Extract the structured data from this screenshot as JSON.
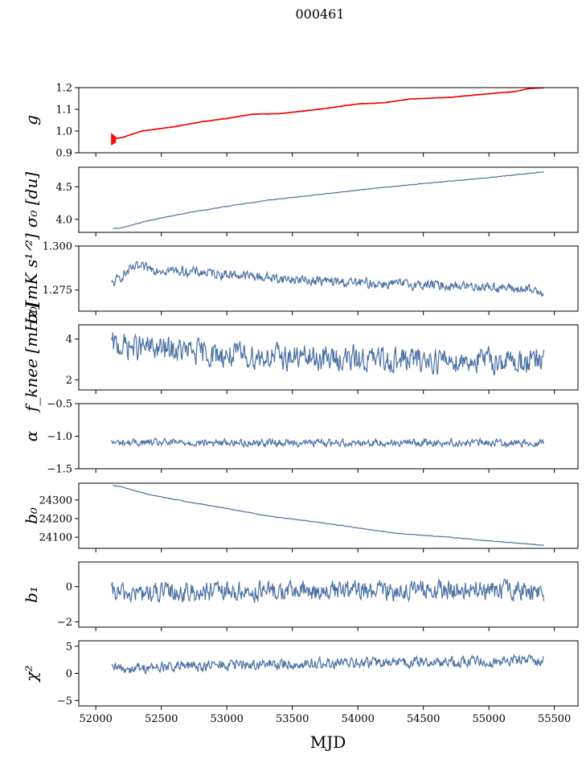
{
  "title": "000461",
  "x_label": "MJD",
  "colors": {
    "series": "#4c72a4",
    "fit": "#ff0000",
    "axes": "#000000"
  },
  "chart_data": [
    {
      "type": "line",
      "ylabel_html": "g",
      "ylim": [
        0.9,
        1.2
      ],
      "yticks": [
        0.9,
        1.0,
        1.1,
        1.2
      ],
      "ytick_labels": [
        "0.9",
        "1.0",
        "1.1",
        "1.2"
      ],
      "xlim": [
        51870,
        55680
      ],
      "x_range": [
        52120,
        55420
      ],
      "trend": [
        [
          52120,
          0.963
        ],
        [
          52200,
          0.97
        ],
        [
          52350,
          1.0
        ],
        [
          52600,
          1.02
        ],
        [
          52800,
          1.042
        ],
        [
          53000,
          1.058
        ],
        [
          53200,
          1.078
        ],
        [
          53400,
          1.08
        ],
        [
          53700,
          1.1
        ],
        [
          54000,
          1.125
        ],
        [
          54200,
          1.13
        ],
        [
          54400,
          1.148
        ],
        [
          54700,
          1.155
        ],
        [
          55000,
          1.172
        ],
        [
          55200,
          1.182
        ],
        [
          55300,
          1.195
        ],
        [
          55420,
          1.2
        ]
      ],
      "noise": 0.002,
      "has_fit": true
    },
    {
      "type": "line",
      "ylabel": "σ₀ [du]",
      "ylim": [
        3.8,
        4.8
      ],
      "yticks": [
        4.0,
        4.5
      ],
      "ytick_labels": [
        "4.0",
        "4.5"
      ],
      "xlim": [
        51870,
        55680
      ],
      "x_range": [
        52130,
        55420
      ],
      "trend": [
        [
          52130,
          3.86
        ],
        [
          52200,
          3.87
        ],
        [
          52400,
          3.98
        ],
        [
          52700,
          4.1
        ],
        [
          53000,
          4.2
        ],
        [
          53300,
          4.29
        ],
        [
          53700,
          4.38
        ],
        [
          54100,
          4.47
        ],
        [
          54500,
          4.55
        ],
        [
          55000,
          4.64
        ],
        [
          55420,
          4.73
        ]
      ],
      "noise": 0.004
    },
    {
      "type": "line",
      "ylabel": "σ₀[mK s¹ᐟ²]",
      "ylim": [
        1.263,
        1.3
      ],
      "yticks": [
        1.275,
        1.3
      ],
      "ytick_labels": [
        "1.275",
        "1.300"
      ],
      "xlim": [
        51870,
        55680
      ],
      "x_range": [
        52120,
        55420
      ],
      "trend": [
        [
          52120,
          1.278
        ],
        [
          52200,
          1.283
        ],
        [
          52300,
          1.288
        ],
        [
          52600,
          1.286
        ],
        [
          53000,
          1.284
        ],
        [
          53500,
          1.281
        ],
        [
          54000,
          1.279
        ],
        [
          54500,
          1.278
        ],
        [
          55000,
          1.277
        ],
        [
          55420,
          1.274
        ]
      ],
      "noise": 0.0025
    },
    {
      "type": "line",
      "ylabel": "f_knee [mHz]",
      "ylim": [
        1.5,
        4.7
      ],
      "yticks": [
        2,
        4
      ],
      "ytick_labels": [
        "2",
        "4"
      ],
      "xlim": [
        51870,
        55680
      ],
      "x_range": [
        52120,
        55420
      ],
      "trend": [
        [
          52120,
          3.7
        ],
        [
          52500,
          3.5
        ],
        [
          53000,
          3.2
        ],
        [
          54000,
          3.0
        ],
        [
          55000,
          2.95
        ],
        [
          55420,
          2.85
        ]
      ],
      "noise": 0.55
    },
    {
      "type": "line",
      "ylabel": "α",
      "ylim": [
        -1.5,
        -0.5
      ],
      "yticks": [
        -1.5,
        -1.0,
        -0.5
      ],
      "ytick_labels": [
        "−1.5",
        "−1.0",
        "−0.5"
      ],
      "xlim": [
        51870,
        55680
      ],
      "x_range": [
        52120,
        55420
      ],
      "trend": [
        [
          52120,
          -1.1
        ],
        [
          55420,
          -1.1
        ]
      ],
      "noise": 0.05
    },
    {
      "type": "line",
      "ylabel": "b₀",
      "ylim": [
        24040,
        24390
      ],
      "yticks": [
        24100,
        24200,
        24300
      ],
      "ytick_labels": [
        "24100",
        "24200",
        "24300"
      ],
      "xlim": [
        51870,
        55680
      ],
      "x_range": [
        52130,
        55420
      ],
      "trend": [
        [
          52130,
          24378
        ],
        [
          52200,
          24370
        ],
        [
          52400,
          24330
        ],
        [
          52700,
          24290
        ],
        [
          53000,
          24255
        ],
        [
          53300,
          24215
        ],
        [
          53700,
          24180
        ],
        [
          54000,
          24150
        ],
        [
          54300,
          24120
        ],
        [
          54700,
          24100
        ],
        [
          55000,
          24080
        ],
        [
          55420,
          24057
        ]
      ],
      "noise": 1.5
    },
    {
      "type": "line",
      "ylabel": "b₁",
      "ylim": [
        -2.3,
        1.4
      ],
      "yticks": [
        -2,
        0
      ],
      "ytick_labels": [
        "−2",
        "0"
      ],
      "xlim": [
        51870,
        55680
      ],
      "x_range": [
        52120,
        55420
      ],
      "trend": [
        [
          52120,
          -0.4
        ],
        [
          53000,
          -0.3
        ],
        [
          54500,
          -0.2
        ],
        [
          55420,
          -0.25
        ]
      ],
      "noise": 0.5
    },
    {
      "type": "line",
      "ylabel": "χ²",
      "ylim": [
        -6,
        6
      ],
      "yticks": [
        -5,
        0,
        5
      ],
      "ytick_labels": [
        "−5",
        "0",
        "5"
      ],
      "xlim": [
        51870,
        55680
      ],
      "x_range": [
        52120,
        55420
      ],
      "trend": [
        [
          52120,
          0.8
        ],
        [
          53000,
          1.5
        ],
        [
          54000,
          1.9
        ],
        [
          55000,
          2.2
        ],
        [
          55420,
          2.5
        ]
      ],
      "noise": 0.9
    }
  ],
  "xticks": [
    52000,
    52500,
    53000,
    53500,
    54000,
    54500,
    55000,
    55500
  ],
  "xtick_labels": [
    "52000",
    "52500",
    "53000",
    "53500",
    "54000",
    "54500",
    "55000",
    "55500"
  ]
}
